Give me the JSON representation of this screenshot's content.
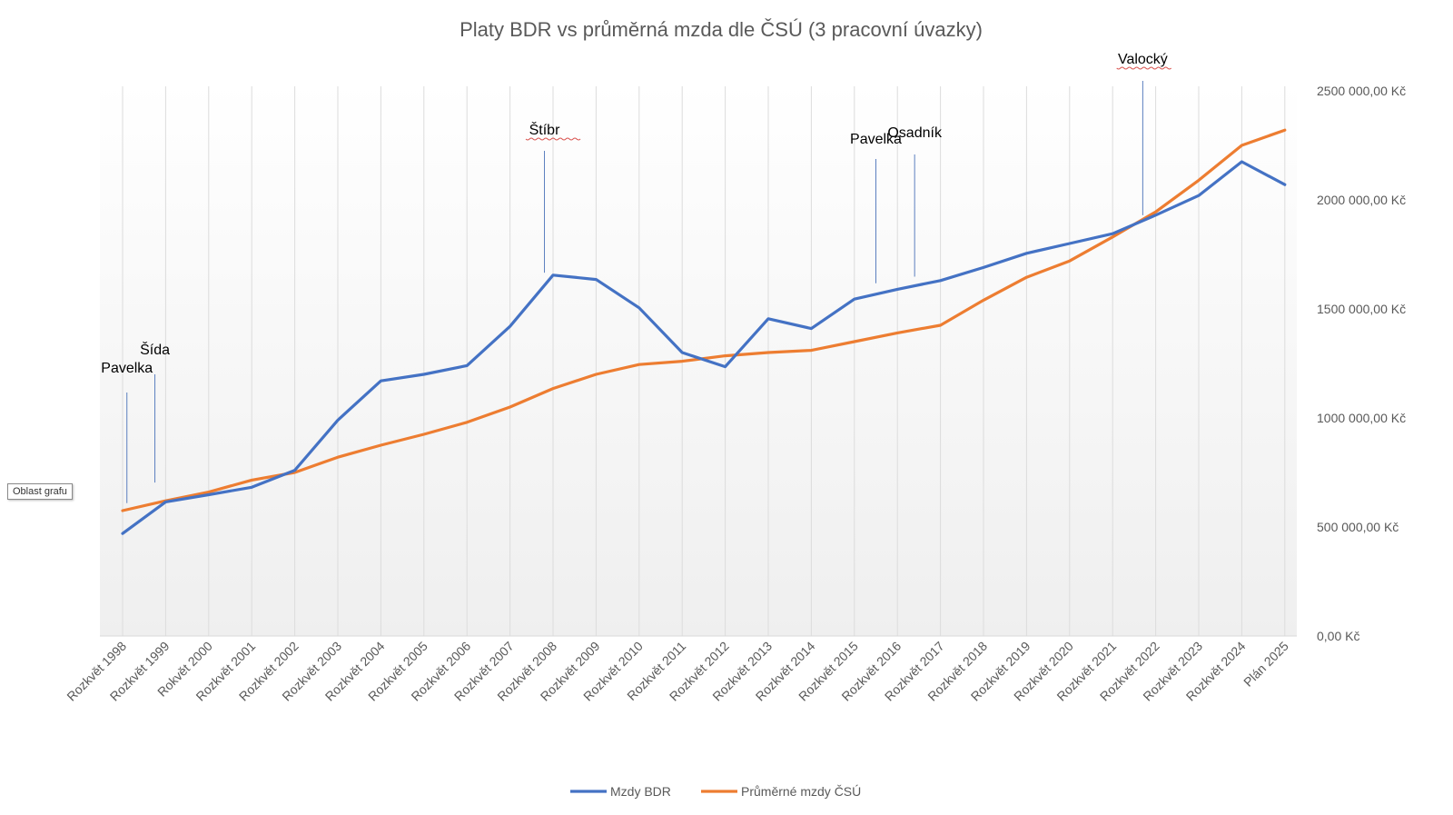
{
  "chart_data": {
    "type": "line",
    "title": "Platy BDR vs průměrná mzda dle ČSÚ (3 pracovní úvazky)",
    "categories": [
      "Rozkvět 1998",
      "Rozkvět 1999",
      "Rokvět 2000",
      "Rozkvět 2001",
      "Rozkvět 2002",
      "Rozkvět 2003",
      "Rozkvět 2004",
      "Rozkvět 2005",
      "Rozkvět 2006",
      "Rozkvět 2007",
      "Rozkvět 2008",
      "Rozkvět 2009",
      "Rozkvět 2010",
      "Rozkvět 2011",
      "Rozkvět 2012",
      "Rozkvět 2013",
      "Rozkvět 2014",
      "Rozkvět 2015",
      "Rozkvět 2016",
      "Rozkvět 2017",
      "Rozkvět 2018",
      "Rozkvět 2019",
      "Rozkvět 2020",
      "Rozkvět 2021",
      "Rozkvět 2022",
      "Rozkvět 2023",
      "Rozkvět 2024",
      "Plán 2025"
    ],
    "series": [
      {
        "name": "Mzdy BDR",
        "color": "#4472C4",
        "values": [
          470000,
          615000,
          648000,
          682000,
          760000,
          990000,
          1170000,
          1200000,
          1240000,
          1420000,
          1655000,
          1635000,
          1505000,
          1300000,
          1235000,
          1455000,
          1410000,
          1545000,
          1590000,
          1630000,
          1690000,
          1755000,
          1800000,
          1845000,
          1930000,
          2020000,
          2175000,
          2070000
        ]
      },
      {
        "name": "Průměrné mzdy ČSÚ",
        "color": "#ED7D31",
        "values": [
          575000,
          620000,
          660000,
          715000,
          750000,
          820000,
          875000,
          925000,
          980000,
          1050000,
          1135000,
          1200000,
          1245000,
          1260000,
          1285000,
          1300000,
          1310000,
          1350000,
          1390000,
          1425000,
          1540000,
          1645000,
          1720000,
          1830000,
          1945000,
          2090000,
          2250000,
          2320000
        ]
      }
    ],
    "ylim": [
      0,
      2500000
    ],
    "yticks": [
      0,
      500000,
      1000000,
      1500000,
      2000000,
      2500000
    ],
    "ytick_labels": [
      "0,00 Kč",
      "500 000,00 Kč",
      "1000 000,00 Kč",
      "1500 000,00 Kč",
      "2000 000,00 Kč",
      "2500 000,00 Kč"
    ],
    "y_axis_side": "right",
    "grid": "vertical",
    "legend_position": "bottom",
    "annotations": [
      {
        "label": "Pavelka",
        "x_index": 0.1,
        "underline": false
      },
      {
        "label": "Šída",
        "x_index": 0.75,
        "underline": false
      },
      {
        "label": "Štíbr",
        "x_index": 9.8,
        "underline": true
      },
      {
        "label": "Pavelka",
        "x_index": 17.5,
        "underline": false
      },
      {
        "label": "Osadník",
        "x_index": 18.4,
        "underline": false
      },
      {
        "label": "Valocký",
        "x_index": 23.7,
        "underline": true
      }
    ]
  },
  "tooltip": {
    "text": "Oblast grafu"
  }
}
